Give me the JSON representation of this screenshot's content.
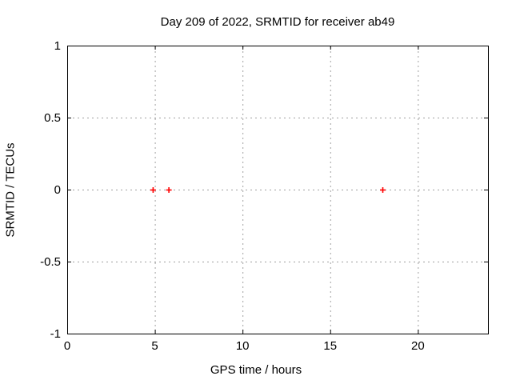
{
  "chart_data": {
    "type": "scatter",
    "title": "Day 209 of 2022, SRMTID for receiver ab49",
    "xlabel": "GPS time / hours",
    "ylabel": "SRMTID / TECUs",
    "xlim": [
      0,
      24
    ],
    "ylim": [
      -1,
      1
    ],
    "xticks": [
      0,
      5,
      10,
      15,
      20
    ],
    "xtick_labels": [
      "0",
      "5",
      "10",
      "15",
      "20"
    ],
    "yticks": [
      -1,
      -0.5,
      0,
      0.5,
      1
    ],
    "ytick_labels": [
      "-1",
      "-0.5",
      "0",
      "0.5",
      "1"
    ],
    "grid": true,
    "legend": "none",
    "series": [
      {
        "name": "SRMTID",
        "marker": "plus",
        "color": "#ff0000",
        "points": [
          [
            4.9,
            0
          ],
          [
            5.8,
            0
          ],
          [
            18.0,
            0
          ]
        ]
      }
    ],
    "colors": {
      "background": "#ffffff",
      "axis": "#000000",
      "grid": "#a0a0a0",
      "text": "#000000",
      "marker": "#ff0000"
    }
  }
}
